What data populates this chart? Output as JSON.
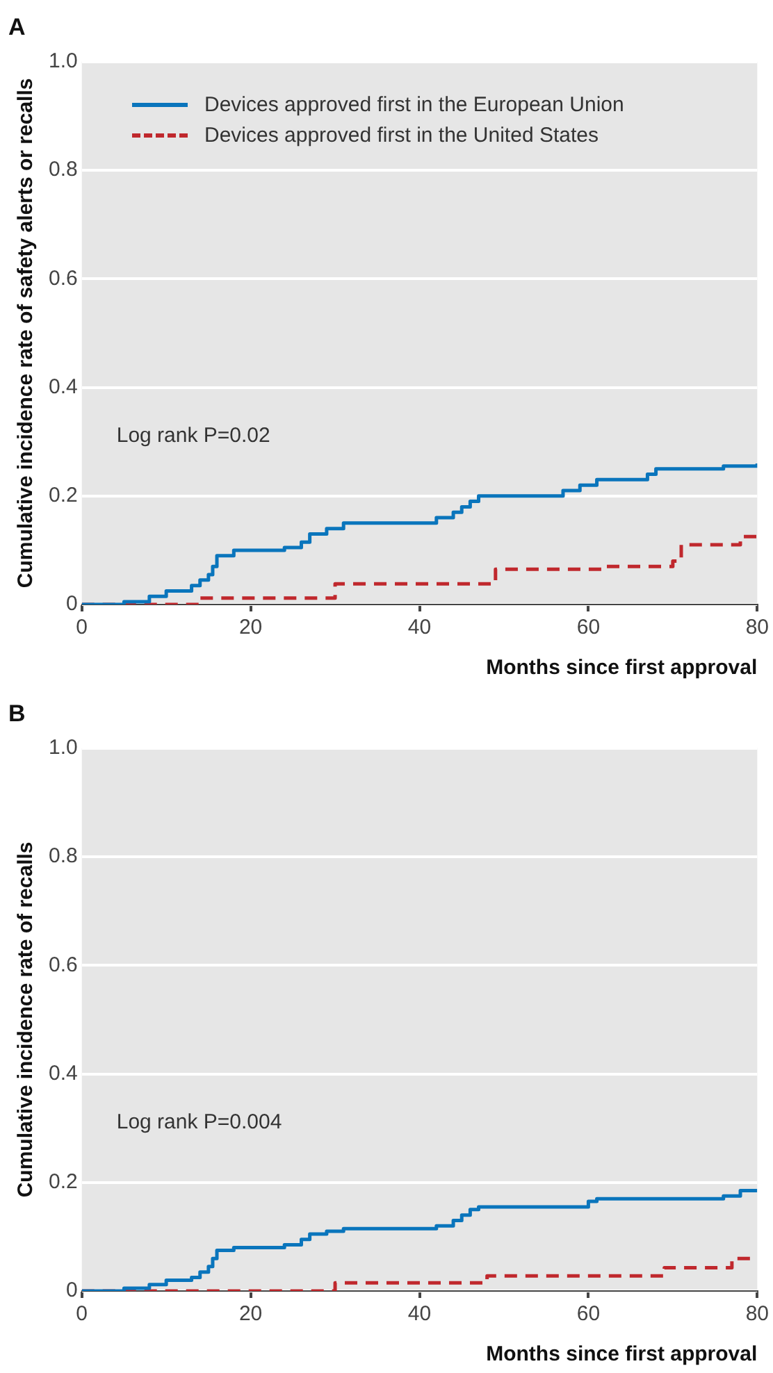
{
  "chart_data": [
    {
      "type": "step",
      "title": "A",
      "xlabel": "Months since first approval",
      "ylabel": "Cumulative incidence rate of safety alerts or recalls",
      "xlim": [
        0,
        80
      ],
      "xticks": [
        0,
        20,
        40,
        60,
        80
      ],
      "ylim": [
        0,
        1
      ],
      "yticks": [
        0,
        0.2,
        0.4,
        0.6,
        0.8,
        {
          "value": 1,
          "label": "1.0"
        }
      ],
      "grid": "y",
      "legend": "top left",
      "annotations": [
        "Log rank P=0.02"
      ],
      "series": [
        {
          "name": "Devices approved first in the European Union",
          "color": "#0a75bc",
          "line_style": "solid",
          "x": [
            0,
            5,
            8,
            10,
            13,
            14,
            15,
            15.5,
            16,
            18,
            24,
            26,
            27,
            29,
            31,
            42,
            44,
            45,
            46,
            47,
            57,
            59,
            61,
            67,
            68,
            76,
            80
          ],
          "values": [
            0,
            0.005,
            0.015,
            0.025,
            0.035,
            0.045,
            0.055,
            0.07,
            0.09,
            0.1,
            0.105,
            0.115,
            0.13,
            0.14,
            0.15,
            0.16,
            0.17,
            0.18,
            0.19,
            0.2,
            0.21,
            0.22,
            0.23,
            0.24,
            0.25,
            0.255,
            0.26
          ]
        },
        {
          "name": "Devices approved first in the United States",
          "color": "#c0282d",
          "line_style": "dashed",
          "x": [
            0,
            14,
            30,
            49,
            62,
            70,
            71,
            78,
            80
          ],
          "values": [
            0,
            0.012,
            0.038,
            0.065,
            0.07,
            0.08,
            0.11,
            0.125,
            0.125
          ]
        }
      ]
    },
    {
      "type": "step",
      "title": "B",
      "xlabel": "Months since first approval",
      "ylabel": "Cumulative incidence rate of recalls",
      "xlim": [
        0,
        80
      ],
      "xticks": [
        0,
        20,
        40,
        60,
        80
      ],
      "ylim": [
        0,
        1
      ],
      "yticks": [
        0,
        0.2,
        0.4,
        0.6,
        0.8,
        {
          "value": 1,
          "label": "1.0"
        }
      ],
      "grid": "y",
      "annotations": [
        "Log rank P=0.004"
      ],
      "series": [
        {
          "color": "#0a75bc",
          "line_style": "solid",
          "x": [
            0,
            5,
            8,
            10,
            13,
            14,
            15,
            15.5,
            16,
            18,
            24,
            26,
            27,
            29,
            31,
            42,
            44,
            45,
            46,
            47,
            60,
            61,
            76,
            78,
            80
          ],
          "values": [
            0,
            0.005,
            0.012,
            0.02,
            0.025,
            0.035,
            0.045,
            0.06,
            0.075,
            0.08,
            0.085,
            0.095,
            0.105,
            0.11,
            0.115,
            0.12,
            0.13,
            0.14,
            0.15,
            0.155,
            0.165,
            0.17,
            0.175,
            0.185,
            0.185
          ]
        },
        {
          "color": "#c0282d",
          "line_style": "dashed",
          "x": [
            0,
            30,
            48,
            69,
            77,
            80
          ],
          "values": [
            0,
            0.015,
            0.028,
            0.043,
            0.06,
            0.06
          ]
        }
      ]
    }
  ]
}
